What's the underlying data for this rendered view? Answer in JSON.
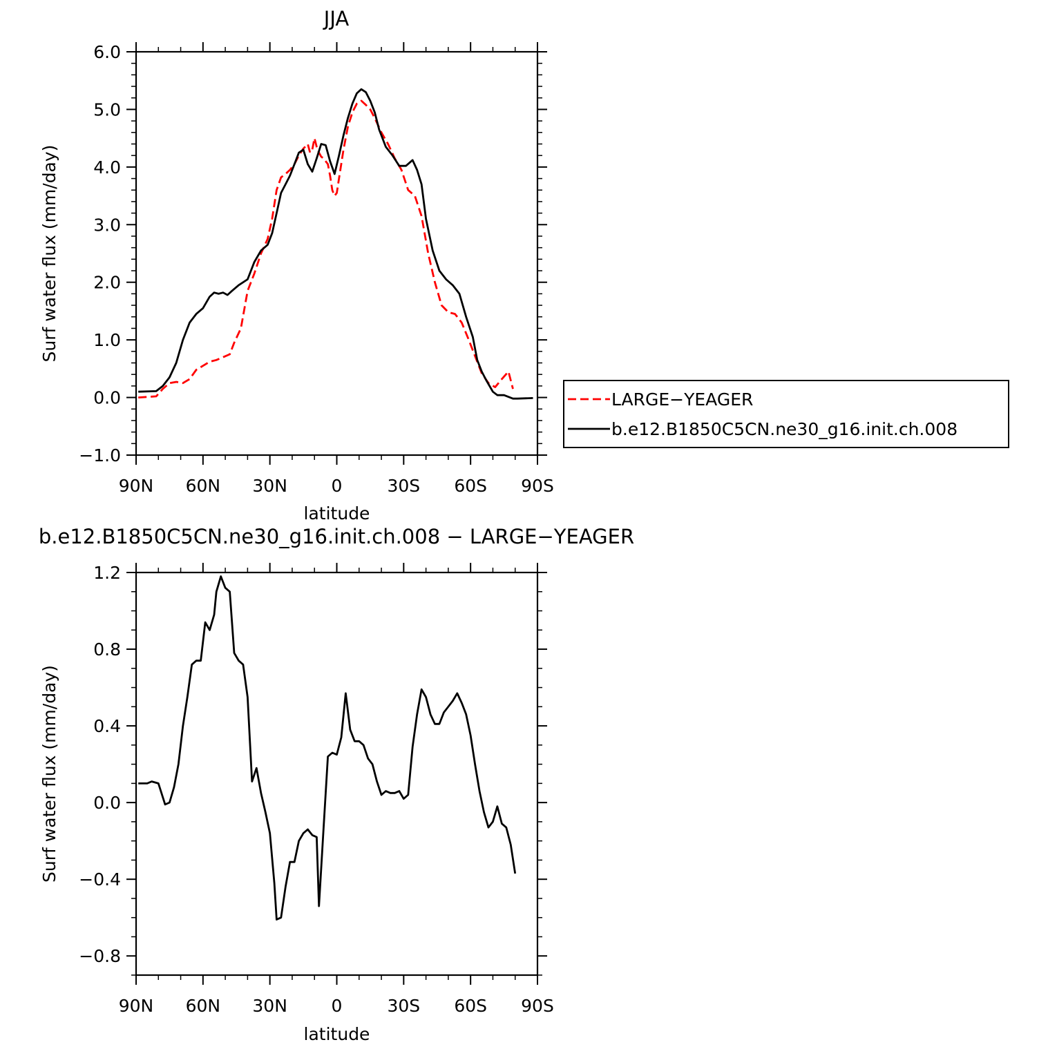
{
  "chart_data": [
    {
      "type": "line",
      "title": "JJA",
      "xlabel": "latitude",
      "ylabel": "Surf water flux (mm/day)",
      "xlim": [
        -90,
        90
      ],
      "ylim": [
        -1.0,
        6.0
      ],
      "xtick_values": [
        -90,
        -60,
        -30,
        0,
        30,
        60,
        90
      ],
      "xtick_labels": [
        "90N",
        "60N",
        "30N",
        "0",
        "30S",
        "60S",
        "90S"
      ],
      "ytick_values": [
        -1.0,
        0.0,
        1.0,
        2.0,
        3.0,
        4.0,
        5.0,
        6.0
      ],
      "ytick_labels": [
        "−1.0",
        "0.0",
        "1.0",
        "2.0",
        "3.0",
        "4.0",
        "5.0",
        "6.0"
      ],
      "legend_position": "right",
      "series": [
        {
          "name": "LARGE−YEAGER",
          "color": "#ff0000",
          "dash": "dashed",
          "x": [
            -89,
            -81,
            -78,
            -75,
            -72,
            -69,
            -66,
            -63,
            -60,
            -57,
            -54,
            -51,
            -48,
            -46,
            -43,
            -40,
            -37,
            -34,
            -31,
            -29,
            -27,
            -25,
            -23,
            -21,
            -19,
            -17,
            -15,
            -13,
            -12,
            -11,
            -10,
            -9,
            -8,
            -7,
            -6,
            -5,
            -4,
            -3,
            -2,
            -1,
            0,
            1,
            3,
            5,
            7,
            9,
            11,
            13,
            15,
            17,
            20,
            23,
            26,
            29,
            32,
            35,
            38,
            41,
            44,
            47,
            50,
            53,
            56,
            59,
            62,
            65,
            68,
            71,
            74,
            77,
            79
          ],
          "y": [
            0.0,
            0.02,
            0.15,
            0.25,
            0.27,
            0.25,
            0.32,
            0.48,
            0.55,
            0.62,
            0.65,
            0.7,
            0.75,
            0.95,
            1.2,
            1.85,
            2.15,
            2.5,
            2.75,
            3.1,
            3.6,
            3.82,
            3.88,
            3.95,
            4.05,
            4.2,
            4.32,
            4.4,
            4.25,
            4.3,
            4.5,
            4.35,
            4.25,
            4.18,
            4.15,
            4.1,
            4.05,
            3.85,
            3.6,
            3.5,
            3.55,
            3.8,
            4.3,
            4.7,
            4.95,
            5.1,
            5.15,
            5.08,
            5.0,
            4.85,
            4.6,
            4.4,
            4.15,
            3.95,
            3.6,
            3.5,
            3.15,
            2.5,
            2.0,
            1.6,
            1.48,
            1.45,
            1.3,
            1.02,
            0.72,
            0.42,
            0.25,
            0.18,
            0.32,
            0.45,
            0.15
          ]
        },
        {
          "name": "b.e12.B1850C5CN.ne30_g16.init.ch.008",
          "color": "#000000",
          "dash": "solid",
          "x": [
            -89,
            -81,
            -78,
            -75,
            -72,
            -69,
            -66,
            -63,
            -60,
            -57,
            -55,
            -53,
            -51,
            -49,
            -47,
            -44,
            -40,
            -37,
            -34,
            -31,
            -29,
            -27,
            -25,
            -23,
            -21,
            -19,
            -17,
            -15,
            -13,
            -11,
            -9,
            -7,
            -5,
            -3,
            -1,
            1,
            3,
            5,
            7,
            9,
            11,
            13,
            15,
            17,
            19,
            22,
            25,
            28,
            31,
            34,
            36,
            38,
            40,
            43,
            46,
            49,
            52,
            55,
            58,
            61,
            63,
            65,
            67,
            70,
            72,
            75,
            79,
            81,
            88
          ],
          "y": [
            0.1,
            0.11,
            0.2,
            0.35,
            0.6,
            1.0,
            1.3,
            1.45,
            1.55,
            1.75,
            1.82,
            1.8,
            1.82,
            1.78,
            1.85,
            1.95,
            2.05,
            2.35,
            2.55,
            2.65,
            2.85,
            3.2,
            3.55,
            3.7,
            3.85,
            4.05,
            4.25,
            4.3,
            4.05,
            3.92,
            4.15,
            4.4,
            4.38,
            4.1,
            3.88,
            4.2,
            4.55,
            4.85,
            5.1,
            5.28,
            5.35,
            5.3,
            5.15,
            4.95,
            4.65,
            4.35,
            4.2,
            4.02,
            4.02,
            4.12,
            3.95,
            3.7,
            3.1,
            2.55,
            2.2,
            2.05,
            1.95,
            1.8,
            1.4,
            1.05,
            0.65,
            0.45,
            0.3,
            0.1,
            0.04,
            0.04,
            -0.02,
            -0.02,
            -0.01
          ]
        }
      ]
    },
    {
      "type": "line",
      "title": "b.e12.B1850C5CN.ne30_g16.init.ch.008 − LARGE−YEAGER",
      "xlabel": "latitude",
      "ylabel": "Surf water flux (mm/day)",
      "xlim": [
        -90,
        90
      ],
      "ylim": [
        -0.9,
        1.2
      ],
      "xtick_values": [
        -90,
        -60,
        -30,
        0,
        30,
        60,
        90
      ],
      "xtick_labels": [
        "90N",
        "60N",
        "30N",
        "0",
        "30S",
        "60S",
        "90S"
      ],
      "ytick_values": [
        -0.8,
        -0.4,
        0.0,
        0.4,
        0.8,
        1.2
      ],
      "ytick_labels": [
        "−0.8",
        "−0.4",
        "0.0",
        "0.4",
        "0.8",
        "1.2"
      ],
      "series": [
        {
          "name": "",
          "color": "#000000",
          "dash": "solid",
          "x": [
            -89,
            -85,
            -83,
            -80,
            -77,
            -75,
            -73,
            -71,
            -69,
            -67,
            -65,
            -63,
            -61,
            -59,
            -57,
            -55,
            -54,
            -52,
            -50,
            -48,
            -46,
            -44,
            -42,
            -40,
            -38,
            -36,
            -34,
            -32,
            -30,
            -28,
            -27,
            -25,
            -23,
            -21,
            -19,
            -17,
            -15,
            -13,
            -11,
            -9,
            -8,
            -6,
            -4,
            -2,
            0,
            2,
            4,
            6,
            8,
            10,
            12,
            14,
            16,
            18,
            20,
            22,
            24,
            26,
            28,
            30,
            32,
            34,
            36,
            38,
            40,
            42,
            44,
            46,
            48,
            50,
            52,
            54,
            56,
            58,
            60,
            62,
            64,
            66,
            68,
            70,
            72,
            74,
            76,
            78,
            80
          ],
          "y": [
            0.1,
            0.1,
            0.11,
            0.1,
            -0.01,
            0.0,
            0.08,
            0.2,
            0.4,
            0.55,
            0.72,
            0.74,
            0.74,
            0.94,
            0.9,
            0.98,
            1.1,
            1.18,
            1.12,
            1.1,
            0.78,
            0.74,
            0.72,
            0.55,
            0.11,
            0.18,
            0.05,
            -0.05,
            -0.16,
            -0.42,
            -0.61,
            -0.6,
            -0.44,
            -0.31,
            -0.31,
            -0.2,
            -0.16,
            -0.14,
            -0.17,
            -0.18,
            -0.54,
            -0.15,
            0.24,
            0.26,
            0.25,
            0.34,
            0.57,
            0.38,
            0.32,
            0.32,
            0.3,
            0.23,
            0.2,
            0.11,
            0.04,
            0.06,
            0.05,
            0.05,
            0.06,
            0.02,
            0.04,
            0.29,
            0.46,
            0.59,
            0.55,
            0.46,
            0.41,
            0.41,
            0.47,
            0.5,
            0.53,
            0.57,
            0.52,
            0.46,
            0.35,
            0.2,
            0.06,
            -0.05,
            -0.13,
            -0.1,
            -0.02,
            -0.11,
            -0.13,
            -0.22,
            -0.37
          ]
        }
      ]
    }
  ]
}
